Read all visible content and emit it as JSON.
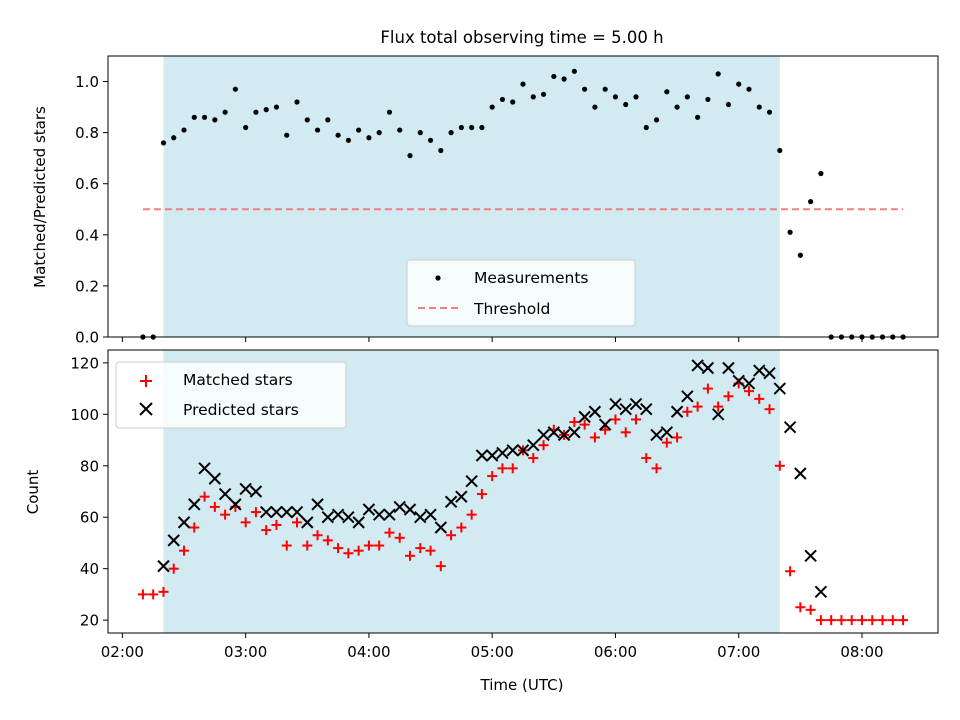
{
  "chart_data": [
    {
      "type": "scatter",
      "title": "Flux total observing time = 5.00 h",
      "ylabel": "Matched/Predicted stars",
      "xlabel": "",
      "ylim": [
        0,
        1.1
      ],
      "yticks": [
        "0.0",
        "0.2",
        "0.4",
        "0.6",
        "0.8",
        "1.0"
      ],
      "shaded_span": [
        "02:20",
        "07:20"
      ],
      "shade_color": "#add8e6",
      "legend": {
        "placement": "lower center",
        "entries": [
          "Measurements",
          "Threshold"
        ]
      },
      "series": [
        {
          "name": "Measurements",
          "color": "#000000",
          "marker": "dot",
          "x": [
            "02:10",
            "02:15",
            "02:20",
            "02:25",
            "02:30",
            "02:35",
            "02:40",
            "02:45",
            "02:50",
            "02:55",
            "03:00",
            "03:05",
            "03:10",
            "03:15",
            "03:20",
            "03:25",
            "03:30",
            "03:35",
            "03:40",
            "03:45",
            "03:50",
            "03:55",
            "04:00",
            "04:05",
            "04:10",
            "04:15",
            "04:20",
            "04:25",
            "04:30",
            "04:35",
            "04:40",
            "04:45",
            "04:50",
            "04:55",
            "05:00",
            "05:05",
            "05:10",
            "05:15",
            "05:20",
            "05:25",
            "05:30",
            "05:35",
            "05:40",
            "05:45",
            "05:50",
            "05:55",
            "06:00",
            "06:05",
            "06:10",
            "06:15",
            "06:20",
            "06:25",
            "06:30",
            "06:35",
            "06:40",
            "06:45",
            "06:50",
            "06:55",
            "07:00",
            "07:05",
            "07:10",
            "07:15",
            "07:20",
            "07:25",
            "07:30",
            "07:35",
            "07:40",
            "07:45",
            "07:50",
            "07:55",
            "08:00",
            "08:05",
            "08:10",
            "08:15",
            "08:20"
          ],
          "y": [
            0.0,
            0.0,
            0.76,
            0.78,
            0.81,
            0.86,
            0.86,
            0.85,
            0.88,
            0.97,
            0.82,
            0.88,
            0.89,
            0.9,
            0.79,
            0.92,
            0.85,
            0.81,
            0.85,
            0.79,
            0.77,
            0.81,
            0.78,
            0.8,
            0.88,
            0.81,
            0.71,
            0.8,
            0.77,
            0.73,
            0.8,
            0.82,
            0.82,
            0.82,
            0.9,
            0.93,
            0.92,
            0.99,
            0.94,
            0.95,
            1.02,
            1.01,
            1.04,
            0.97,
            0.9,
            0.97,
            0.94,
            0.91,
            0.94,
            0.82,
            0.85,
            0.96,
            0.9,
            0.94,
            0.86,
            0.93,
            1.03,
            0.91,
            0.99,
            0.97,
            0.9,
            0.88,
            0.73,
            0.41,
            0.32,
            0.53,
            0.64,
            0.0,
            0.0,
            0.0,
            0.0,
            0.0,
            0.0,
            0.0,
            0.0
          ]
        },
        {
          "name": "Threshold",
          "color": "#f08080",
          "style": "dashed",
          "x": [
            "02:10",
            "08:20"
          ],
          "y": [
            0.5,
            0.5
          ]
        }
      ]
    },
    {
      "type": "scatter",
      "title": "",
      "ylabel": "Count",
      "xlabel": "Time (UTC)",
      "ylim": [
        15,
        125
      ],
      "yticks": [
        "20",
        "40",
        "60",
        "80",
        "100",
        "120"
      ],
      "xlim": [
        "01:53",
        "08:37"
      ],
      "xticks": [
        "02:00",
        "03:00",
        "04:00",
        "05:00",
        "06:00",
        "07:00",
        "08:00"
      ],
      "shaded_span": [
        "02:20",
        "07:20"
      ],
      "shade_color": "#add8e6",
      "legend": {
        "placement": "upper left",
        "entries": [
          "Matched stars",
          "Predicted stars"
        ]
      },
      "series": [
        {
          "name": "Matched stars",
          "color": "#ff0000",
          "marker": "plus",
          "x": [
            "02:10",
            "02:15",
            "02:20",
            "02:25",
            "02:30",
            "02:35",
            "02:40",
            "02:45",
            "02:50",
            "02:55",
            "03:00",
            "03:05",
            "03:10",
            "03:15",
            "03:20",
            "03:25",
            "03:30",
            "03:35",
            "03:40",
            "03:45",
            "03:50",
            "03:55",
            "04:00",
            "04:05",
            "04:10",
            "04:15",
            "04:20",
            "04:25",
            "04:30",
            "04:35",
            "04:40",
            "04:45",
            "04:50",
            "04:55",
            "05:00",
            "05:05",
            "05:10",
            "05:15",
            "05:20",
            "05:25",
            "05:30",
            "05:35",
            "05:40",
            "05:45",
            "05:50",
            "05:55",
            "06:00",
            "06:05",
            "06:10",
            "06:15",
            "06:20",
            "06:25",
            "06:30",
            "06:35",
            "06:40",
            "06:45",
            "06:50",
            "06:55",
            "07:00",
            "07:05",
            "07:10",
            "07:15",
            "07:20",
            "07:25",
            "07:30",
            "07:35",
            "07:40",
            "07:45",
            "07:50",
            "07:55",
            "08:00",
            "08:05",
            "08:10",
            "08:15",
            "08:20"
          ],
          "y": [
            30,
            30,
            31,
            40,
            47,
            56,
            68,
            64,
            61,
            64,
            58,
            62,
            55,
            57,
            49,
            58,
            49,
            53,
            51,
            48,
            46,
            47,
            49,
            49,
            54,
            52,
            45,
            48,
            47,
            41,
            53,
            56,
            61,
            69,
            76,
            79,
            79,
            86,
            83,
            88,
            94,
            92,
            97,
            96,
            91,
            94,
            98,
            93,
            98,
            83,
            79,
            89,
            91,
            101,
            103,
            110,
            103,
            107,
            112,
            109,
            106,
            102,
            80,
            39,
            25,
            24,
            20,
            20,
            20,
            20,
            20,
            20,
            20,
            20,
            20
          ]
        },
        {
          "name": "Predicted stars",
          "color": "#000000",
          "marker": "x",
          "x": [
            "02:20",
            "02:25",
            "02:30",
            "02:35",
            "02:40",
            "02:45",
            "02:50",
            "02:55",
            "03:00",
            "03:05",
            "03:10",
            "03:15",
            "03:20",
            "03:25",
            "03:30",
            "03:35",
            "03:40",
            "03:45",
            "03:50",
            "03:55",
            "04:00",
            "04:05",
            "04:10",
            "04:15",
            "04:20",
            "04:25",
            "04:30",
            "04:35",
            "04:40",
            "04:45",
            "04:50",
            "04:55",
            "05:00",
            "05:05",
            "05:10",
            "05:15",
            "05:20",
            "05:25",
            "05:30",
            "05:35",
            "05:40",
            "05:45",
            "05:50",
            "05:55",
            "06:00",
            "06:05",
            "06:10",
            "06:15",
            "06:20",
            "06:25",
            "06:30",
            "06:35",
            "06:40",
            "06:45",
            "06:50",
            "06:55",
            "07:00",
            "07:05",
            "07:10",
            "07:15",
            "07:20",
            "07:25",
            "07:30",
            "07:35",
            "07:40"
          ],
          "y": [
            41,
            51,
            58,
            65,
            79,
            75,
            69,
            65,
            71,
            70,
            62,
            62,
            62,
            62,
            58,
            65,
            60,
            61,
            60,
            58,
            63,
            61,
            61,
            64,
            63,
            60,
            61,
            56,
            66,
            68,
            74,
            84,
            84,
            85,
            86,
            86,
            88,
            92,
            93,
            92,
            93,
            99,
            101,
            96,
            104,
            102,
            104,
            102,
            92,
            93,
            101,
            107,
            119,
            118,
            100,
            118,
            113,
            112,
            117,
            116,
            110,
            95,
            77,
            45,
            31
          ]
        }
      ]
    }
  ]
}
